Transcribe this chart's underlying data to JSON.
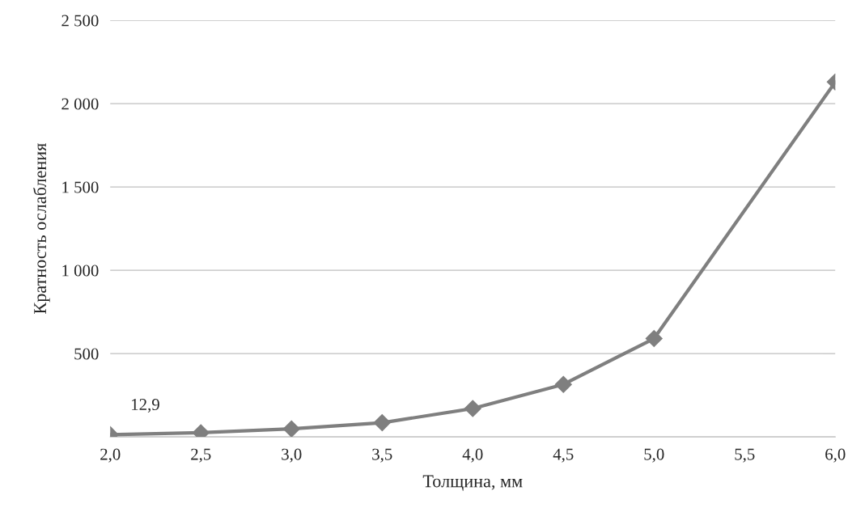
{
  "chart_data": {
    "type": "line",
    "xlabel": "Толщина, мм",
    "ylabel": "Кратность ослабления",
    "x": [
      2.0,
      2.5,
      3.0,
      3.5,
      4.0,
      4.5,
      5.0,
      6.0
    ],
    "series": [
      {
        "color": "#7f7f7f",
        "values": [
          12.9,
          25,
          48,
          85,
          170,
          315,
          590,
          2130
        ],
        "value_labels": [
          "12,9",
          null,
          null,
          null,
          null,
          null,
          null,
          null
        ]
      }
    ],
    "xlim": [
      2.0,
      6.0
    ],
    "ylim": [
      0,
      2500
    ],
    "xticks": [
      {
        "value": 2.0,
        "label": "2,0"
      },
      {
        "value": 2.5,
        "label": "2,5"
      },
      {
        "value": 3.0,
        "label": "3,0"
      },
      {
        "value": 3.5,
        "label": "3,5"
      },
      {
        "value": 4.0,
        "label": "4,0"
      },
      {
        "value": 4.5,
        "label": "4,5"
      },
      {
        "value": 5.0,
        "label": "5,0"
      },
      {
        "value": 5.5,
        "label": "5,5"
      },
      {
        "value": 6.0,
        "label": "6,0"
      }
    ],
    "yticks": [
      {
        "value": 0,
        "label": null
      },
      500,
      {
        "value": 1000,
        "label": "1 000"
      },
      {
        "value": 1500,
        "label": "1 500"
      },
      {
        "value": 2000,
        "label": "2 000"
      },
      {
        "value": 2500,
        "label": "2 500"
      }
    ],
    "grid": "y",
    "marker": "diamond",
    "line_style": "solid",
    "legend": false
  }
}
